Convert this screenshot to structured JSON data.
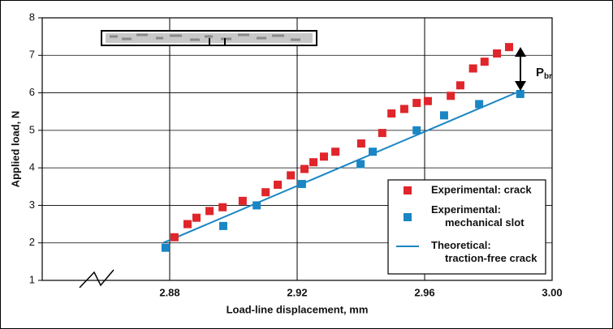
{
  "chart_data": {
    "type": "scatter",
    "x_label": "Load-line displacement, mm",
    "y_label": "Applied load, N",
    "xlim": [
      2.84,
      3.0
    ],
    "ylim": [
      1,
      8
    ],
    "xticks": [
      2.88,
      2.92,
      2.96,
      {
        "value": 3.0,
        "label": "3.00"
      }
    ],
    "yticks": [
      1,
      2,
      3,
      4,
      5,
      6,
      7,
      8
    ],
    "grid": true,
    "legend": "lower right",
    "annotation": {
      "text": "P",
      "subscript": "br"
    },
    "series": [
      {
        "name": "Experimental: crack",
        "color": "#e0252b",
        "kind": "marker",
        "x": [
          2.8815,
          2.8856,
          2.8884,
          2.8925,
          2.8966,
          2.9029,
          2.9101,
          2.9139,
          2.918,
          2.9223,
          2.9251,
          2.9284,
          2.932,
          2.9401,
          2.9467,
          2.9496,
          2.9536,
          2.9575,
          2.961,
          2.9682,
          2.9712,
          2.9752,
          2.9788,
          2.9827,
          2.9865
        ],
        "values": [
          2.15,
          2.5,
          2.67,
          2.85,
          2.95,
          3.12,
          3.35,
          3.55,
          3.8,
          3.97,
          4.15,
          4.3,
          4.43,
          4.65,
          4.93,
          5.45,
          5.57,
          5.73,
          5.78,
          5.92,
          6.2,
          6.65,
          6.83,
          7.05,
          7.22
        ]
      },
      {
        "name": "Experimental: mechanical slot",
        "color": "#1a86c4",
        "kind": "marker",
        "x": [
          2.8787,
          2.8968,
          2.9073,
          2.9215,
          2.9399,
          2.9437,
          2.9575,
          2.9661,
          2.9771,
          2.99
        ],
        "values": [
          1.87,
          2.45,
          3.0,
          3.57,
          4.1,
          4.43,
          5.0,
          5.4,
          5.7,
          5.97
        ]
      },
      {
        "name": "Theoretical: traction-free crack",
        "color": "#1a86c4",
        "kind": "line",
        "x": [
          2.878,
          2.99
        ],
        "values": [
          2.0,
          6.05
        ]
      }
    ]
  }
}
